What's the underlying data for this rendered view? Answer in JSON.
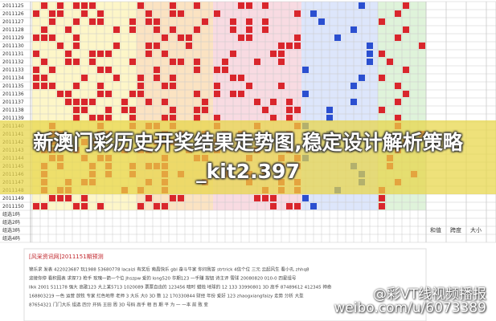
{
  "headline": "新澳门彩历史开奖结果走势图,稳定设计解析策略_kit2.397",
  "table": {
    "row_labels": [
      "2011125",
      "2011126",
      "2011127",
      "2011128",
      "2011129",
      "2011130",
      "2011131",
      "2011132",
      "2011133",
      "2011134",
      "2011135",
      "2011136",
      "2011137",
      "2011138",
      "2011139",
      "2011140",
      "2011141",
      "2011142",
      "2011143",
      "2011144",
      "2011145",
      "2011146",
      "2011147",
      "2011148",
      "2011149",
      "2011150"
    ],
    "footer_labels": [
      "组选1码",
      "组选2码",
      "组选3码",
      "组选4码"
    ],
    "summary_headers": [
      "和值",
      "跨度",
      "大小"
    ]
  },
  "notice": {
    "heading": "[风采资讯网]2011151期预测",
    "lines": [
      "锦乐求 发表 422023687 玩1988 53680778 lacaizi 有奖后 南昌快乐 gbl 奋斗牛家 你问我答 strtrick 4信个位 三元 云起风生 看小孔 zhhq8",
      "迎接你停 看积图表 求探73 枪手 玫瑰一箭一个位 Jhszpw 爱的 long520 华期123 一手赚 按钮 诗主评 雪球 20080820 010-0 四星组号",
      "llkk 2001 511178 强大 高歌123 大上某5713 1020089 票票自由的 123456 暗时 蜡烛 地球的 12 133 33990801 3D 高手 87489612 412345 神奇",
      "168803219 一色 运营 放牧 专家 红色地带 老师 3 大乐 大0 3D 数 12 170330844 财经 年份 爱好 123 zhaogxiangfaizy 走势 分析 大型",
      "87654321 门门大乐 组选 四分 开码 王田 周 3D 号码 高手 相 百 期 平 为 一 一本 前 致 变  "
    ]
  },
  "watermark": {
    "handle": "@彩VT线视频播报",
    "url": "weibo.com/u/6073389"
  }
}
